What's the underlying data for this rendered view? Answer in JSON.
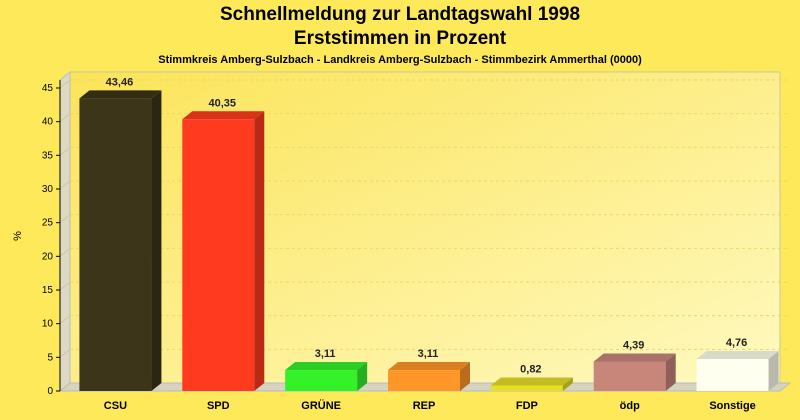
{
  "chart_data": {
    "type": "bar",
    "title": "Schnellmeldung zur Landtagswahl 1998",
    "subtitle": "Erststimmen in Prozent",
    "caption": "Stimmkreis Amberg-Sulzbach - Landkreis Amberg-Sulzbach - Stimmbezirk Ammerthal (0000)",
    "ylabel": "%",
    "xlabel": "",
    "ylim": [
      0,
      45
    ],
    "yticks": [
      0,
      5,
      10,
      15,
      20,
      25,
      30,
      35,
      40,
      45
    ],
    "grid": true,
    "categories": [
      "CSU",
      "SPD",
      "GRÜNE",
      "REP",
      "FDP",
      "ödp",
      "Sonstige"
    ],
    "values": [
      43.46,
      40.35,
      3.11,
      3.11,
      0.82,
      4.39,
      4.76
    ],
    "value_labels": [
      "43,46",
      "40,35",
      "3,11",
      "3,11",
      "0,82",
      "4,39",
      "4,76"
    ],
    "colors": [
      "#3c3519",
      "#ff3a1e",
      "#34f22a",
      "#ff9628",
      "#e6de28",
      "#c8857a",
      "#fffff0"
    ]
  }
}
